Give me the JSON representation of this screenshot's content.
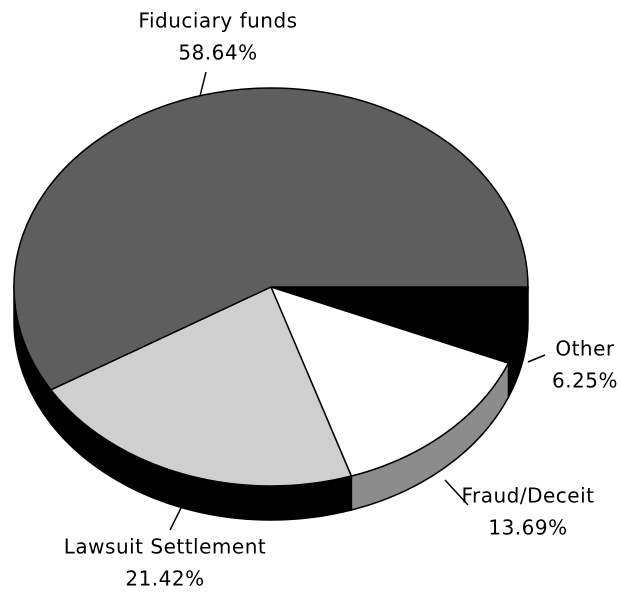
{
  "chart_data": {
    "type": "pie",
    "categories": [
      "Other",
      "Fraud/Deceit",
      "Lawsuit Settlement",
      "Fiduciary funds"
    ],
    "values": [
      6.25,
      13.69,
      21.42,
      58.64
    ],
    "value_labels": [
      "6.25%",
      "13.69%",
      "21.42%",
      "58.64%"
    ],
    "colors": [
      "#000000",
      "#ffffff",
      "#cfcfcf",
      "#5e5e5e"
    ],
    "edge_colors": [
      "#000000",
      "#8c8c8c",
      "#000000",
      "#000000"
    ]
  }
}
